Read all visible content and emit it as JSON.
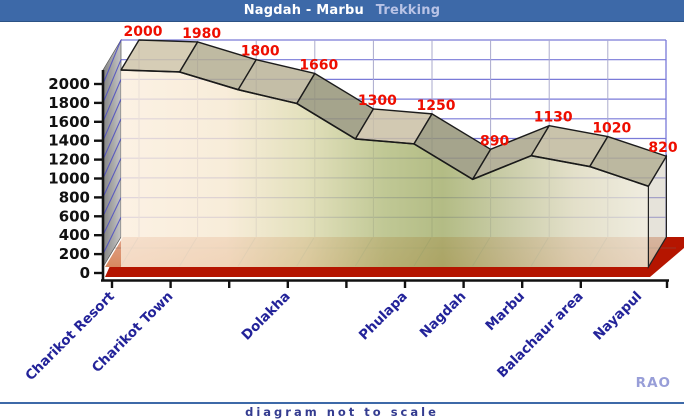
{
  "title_bar": {
    "title_main": "Nagdah - Marbu",
    "title_accent": "Trekking"
  },
  "footer": {
    "note": "diagram not to scale",
    "credit": "RAO"
  },
  "chart_data": {
    "type": "area",
    "projection": "3d",
    "title": "Nagdah - Marbu Trekking elevation profile",
    "categories": [
      "Charikot Resort",
      "Charikot Town",
      "",
      "Dolakha",
      "",
      "Phulapa",
      "Nagdah",
      "Marbu",
      "Balachaur area",
      "Nayapul"
    ],
    "values": [
      2000,
      1980,
      1800,
      1660,
      1300,
      1250,
      890,
      1130,
      1020,
      820
    ],
    "value_labels": [
      "2000",
      "1980",
      "1800",
      "1660",
      "1300",
      "1250",
      "890",
      "1130",
      "1020",
      "820"
    ],
    "y_axis": {
      "min": 0,
      "max": 2000,
      "step": 200,
      "tick_labels": [
        "0",
        "200",
        "400",
        "600",
        "800",
        "1000",
        "1200",
        "1400",
        "1600",
        "1800",
        "2000"
      ]
    },
    "grid": true,
    "legend": "none",
    "colors": {
      "value_label_red": "#ee0e00",
      "category_navy": "#232399",
      "grid_blue": "#7a7ad8",
      "grid_vertical": "#aaaacd",
      "titlebar_blue": "#3d69a8",
      "floor_red": "#b51500",
      "floor_salmon": "#dd9477",
      "area_cream": "#fbeedd",
      "area_green": "#a2ad68",
      "wall_gray": "#9a9a9a",
      "credit_lavender": "#989ed8"
    }
  }
}
